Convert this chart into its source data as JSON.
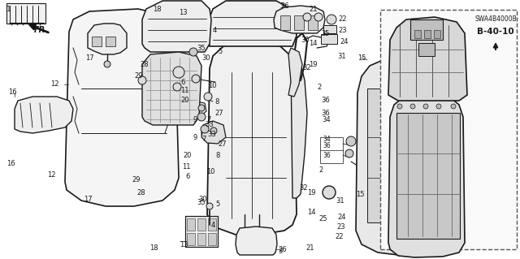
{
  "bg": "#ffffff",
  "line_color": "#1a1a1a",
  "light_fill": "#f2f2f2",
  "mid_fill": "#e0e0e0",
  "page_code": "B-40-10",
  "catalog_code": "SWA4B4000B",
  "fig_width": 6.4,
  "fig_height": 3.19,
  "dpi": 100
}
